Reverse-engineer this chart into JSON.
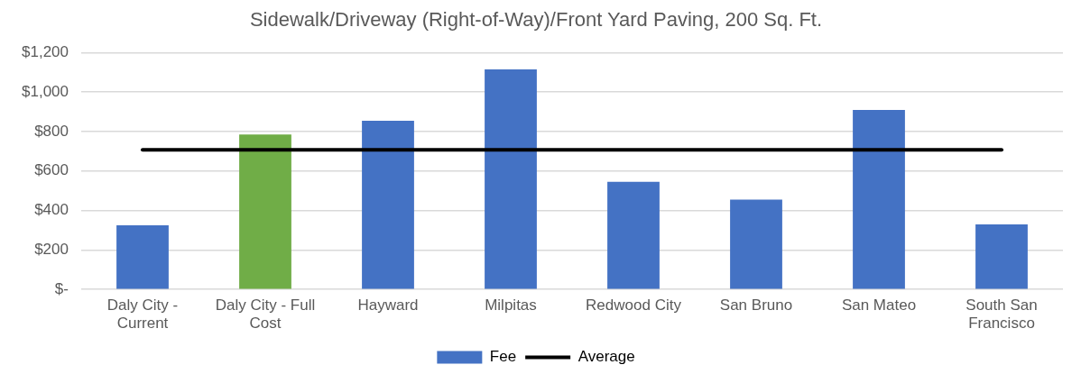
{
  "chart_data": {
    "type": "bar",
    "title": "Sidewalk/Driveway (Right-of-Way)/Front Yard Paving, 200 Sq. Ft.",
    "categories": [
      "Daly City - Current",
      "Daly City - Full Cost",
      "Hayward",
      "Milpitas",
      "Redwood City",
      "San Bruno",
      "San Mateo",
      "South San Francisco"
    ],
    "series": [
      {
        "name": "Fee",
        "color": "#4472c4",
        "colors": [
          "#4472c4",
          "#70ad47",
          "#4472c4",
          "#4472c4",
          "#4472c4",
          "#4472c4",
          "#4472c4",
          "#4472c4"
        ],
        "values": [
          325,
          785,
          855,
          1115,
          545,
          455,
          910,
          330
        ]
      },
      {
        "name": "Average",
        "type": "line",
        "color": "#000000",
        "values": [
          707,
          707,
          707,
          707,
          707,
          707,
          707,
          707
        ]
      }
    ],
    "ylim": [
      0,
      1200
    ],
    "yticks": [
      {
        "value": 0,
        "label": "$-"
      },
      {
        "value": 200,
        "label": "$200"
      },
      {
        "value": 400,
        "label": "$400"
      },
      {
        "value": 600,
        "label": "$600"
      },
      {
        "value": 800,
        "label": "$800"
      },
      {
        "value": 1000,
        "label": "$1,000"
      },
      {
        "value": 1200,
        "label": "$1,200"
      }
    ],
    "grid": "y",
    "legend": "bottom",
    "marker": "none",
    "line_style": "solid"
  }
}
